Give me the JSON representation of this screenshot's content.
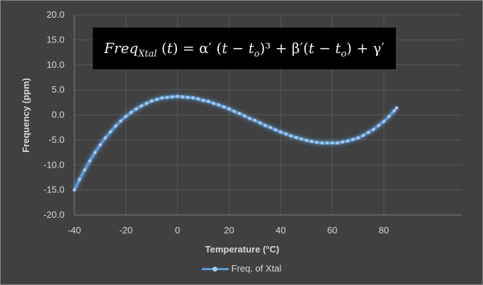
{
  "chart_data": {
    "type": "line",
    "title": "",
    "annotation": "Freq_Xtal (t) = α′ (t − t_o)³ + β′(t − t_o) + γ′",
    "xlabel": "Temperature (°C)",
    "ylabel": "Frequency (ppm)",
    "xlim": [
      -40,
      85
    ],
    "ylim": [
      -20,
      20
    ],
    "xticks": [
      "-40",
      "-20",
      "0",
      "20",
      "40",
      "60",
      "80"
    ],
    "yticks": [
      "20.0",
      "15.0",
      "10.0",
      "5.0",
      "0.0",
      "-5.0",
      "-10.0",
      "-15.0",
      "-20.0"
    ],
    "grid": true,
    "legend_position": "bottom",
    "colors": {
      "background": "#404040",
      "line": "#5b9bd5",
      "marker": "#a9c8ee",
      "grid": "#595959",
      "text": "#d9d9d9"
    },
    "series": [
      {
        "name": "Freq. of Xtal",
        "x": [
          -40,
          -38,
          -36,
          -34,
          -32,
          -30,
          -28,
          -26,
          -24,
          -22,
          -20,
          -18,
          -16,
          -14,
          -12,
          -10,
          -8,
          -6,
          -4,
          -2,
          0,
          2,
          4,
          6,
          8,
          10,
          12,
          14,
          16,
          18,
          20,
          22,
          24,
          26,
          28,
          30,
          32,
          34,
          36,
          38,
          40,
          42,
          44,
          46,
          48,
          50,
          52,
          54,
          56,
          58,
          60,
          62,
          64,
          66,
          68,
          70,
          72,
          74,
          76,
          78,
          80,
          82,
          84,
          85
        ],
        "y": [
          -15.0,
          -12.9,
          -11.0,
          -9.2,
          -7.5,
          -6.0,
          -4.6,
          -3.4,
          -2.2,
          -1.2,
          -0.3,
          0.5,
          1.2,
          1.8,
          2.3,
          2.8,
          3.1,
          3.4,
          3.5,
          3.6,
          3.7,
          3.6,
          3.5,
          3.4,
          3.2,
          2.9,
          2.7,
          2.3,
          2.0,
          1.6,
          1.2,
          0.7,
          0.3,
          -0.2,
          -0.7,
          -1.1,
          -1.6,
          -2.1,
          -2.5,
          -3.0,
          -3.4,
          -3.8,
          -4.2,
          -4.5,
          -4.8,
          -5.1,
          -5.3,
          -5.5,
          -5.6,
          -5.6,
          -5.6,
          -5.6,
          -5.4,
          -5.2,
          -4.9,
          -4.6,
          -4.1,
          -3.5,
          -2.9,
          -2.1,
          -1.3,
          -0.3,
          0.8,
          1.4
        ]
      }
    ]
  }
}
